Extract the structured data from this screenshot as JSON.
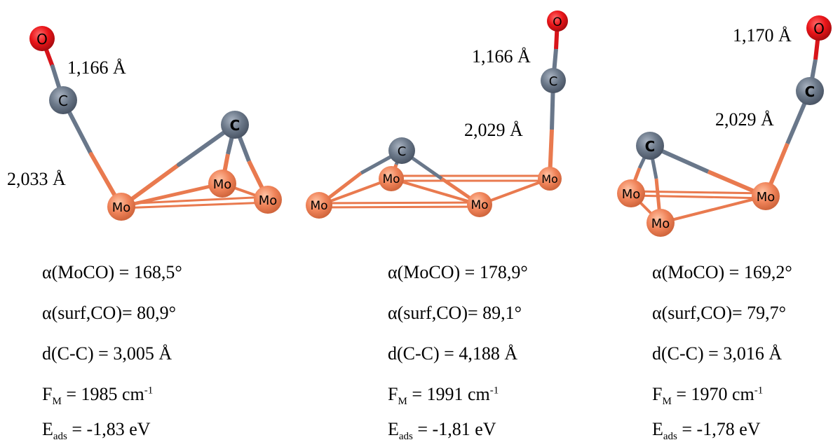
{
  "panels": [
    {
      "distances": [
        "1,166 Å",
        "2,033 Å"
      ],
      "atoms": [
        "O",
        "C",
        "Mo",
        "C",
        "Mo",
        "Mo"
      ],
      "props": {
        "angle_moco": "α(MoCO) = 168,5°",
        "angle_surf": "α(surf,CO)= 80,9°",
        "dcc": "d(C-C) = 3,005 Å",
        "fm_prefix": "F",
        "fm_sub": "M",
        "fm_value": " = 1985 cm",
        "fm_sup": "-1",
        "eads_prefix": "E",
        "eads_sub": "ads",
        "eads_value": " = -1,83 eV"
      }
    },
    {
      "distances": [
        "1,166 Å",
        "2,029 Å"
      ],
      "atoms": [
        "O",
        "C",
        "C",
        "Mo",
        "Mo",
        "Mo",
        "Mo"
      ],
      "props": {
        "angle_moco": "α(MoCO) = 178,9°",
        "angle_surf": "α(surf,CO)= 89,1°",
        "dcc": "d(C-C) = 4,188 Å",
        "fm_prefix": "F",
        "fm_sub": "M",
        "fm_value": " =  1991 cm",
        "fm_sup": "-1",
        "eads_prefix": "E",
        "eads_sub": "ads",
        "eads_value": " = -1,81 eV"
      }
    },
    {
      "distances": [
        "1,170 Å",
        "2,029 Å"
      ],
      "atoms": [
        "O",
        "C",
        "C",
        "Mo",
        "Mo",
        "Mo"
      ],
      "props": {
        "angle_moco": "α(MoCO) = 169,2°",
        "angle_surf": "α(surf,CO)= 79,7°",
        "dcc": "d(C-C) = 3,016 Å",
        "fm_prefix": "F",
        "fm_sub": "M",
        "fm_value": " = 1970 cm",
        "fm_sup": "-1",
        "eads_prefix": "E",
        "eads_sub": "ads",
        "eads_value": " = -1,78 eV"
      }
    }
  ],
  "colors": {
    "oxygen": "#e8141a",
    "carbon": "#6b7889",
    "molybdenum": "#f0845a",
    "bond_mo": "#e97a4f",
    "bond_c": "#69778a",
    "bond_o": "#d8141a"
  }
}
